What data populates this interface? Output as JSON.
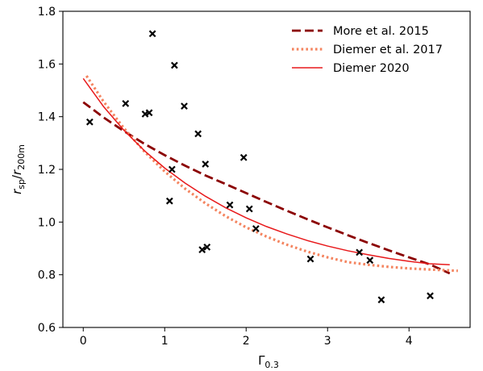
{
  "chart_data": {
    "type": "scatter",
    "xlabel": "Γ",
    "xlabel_sub": "0.3",
    "ylabel_main": "r",
    "ylabel_sub1": "sp",
    "ylabel_sep": "/",
    "ylabel_main2": "r",
    "ylabel_sub2": "200m",
    "xlim": [
      -0.25,
      4.75
    ],
    "ylim": [
      0.6,
      1.8
    ],
    "xticks": [
      0,
      1,
      2,
      3,
      4
    ],
    "yticks": [
      0.6,
      0.8,
      1.0,
      1.2,
      1.4,
      1.6,
      1.8
    ],
    "xtick_labels": [
      "0",
      "1",
      "2",
      "3",
      "4"
    ],
    "ytick_labels": [
      "0.6",
      "0.8",
      "1.0",
      "1.2",
      "1.4",
      "1.6",
      "1.8"
    ],
    "grid": false,
    "legend_position": "top-right",
    "points": {
      "x": [
        0.08,
        0.52,
        0.76,
        0.81,
        0.85,
        1.06,
        1.12,
        1.24,
        1.41,
        1.46,
        1.5,
        1.52,
        1.09,
        1.8,
        1.97,
        2.04,
        2.12,
        2.79,
        3.39,
        3.52,
        3.66,
        4.26
      ],
      "y": [
        1.38,
        1.45,
        1.41,
        1.415,
        1.715,
        1.08,
        1.595,
        1.44,
        1.335,
        0.895,
        1.22,
        0.905,
        1.2,
        1.065,
        1.245,
        1.05,
        0.975,
        0.86,
        0.885,
        0.855,
        0.705,
        0.72
      ],
      "marker": "x",
      "color": "#000000"
    },
    "series": [
      {
        "name": "More et al. 2015",
        "style": "dashed",
        "color": "#8b0000",
        "x": [
          0.0,
          0.25,
          0.5,
          0.75,
          1.0,
          1.25,
          1.5,
          1.75,
          2.0,
          2.25,
          2.5,
          2.75,
          3.0,
          3.25,
          3.5,
          3.75,
          4.0,
          4.25,
          4.5
        ],
        "y": [
          1.455,
          1.397,
          1.345,
          1.297,
          1.254,
          1.214,
          1.177,
          1.144,
          1.11,
          1.076,
          1.043,
          1.011,
          0.98,
          0.95,
          0.921,
          0.893,
          0.866,
          0.84,
          0.805
        ]
      },
      {
        "name": "Diemer et al. 2017",
        "style": "dotted",
        "color": "#f4845f",
        "x": [
          0.04,
          0.25,
          0.5,
          0.75,
          1.0,
          1.25,
          1.5,
          1.75,
          2.0,
          2.25,
          2.5,
          2.75,
          3.0,
          3.25,
          3.5,
          3.75,
          4.0,
          4.25,
          4.6
        ],
        "y": [
          1.555,
          1.457,
          1.356,
          1.268,
          1.192,
          1.127,
          1.071,
          1.022,
          0.98,
          0.945,
          0.914,
          0.888,
          0.866,
          0.848,
          0.838,
          0.83,
          0.824,
          0.82,
          0.815
        ]
      },
      {
        "name": "Diemer 2020",
        "style": "solid",
        "color": "#e8191b",
        "x": [
          0.0,
          0.25,
          0.5,
          0.75,
          1.0,
          1.25,
          1.5,
          1.75,
          2.0,
          2.25,
          2.5,
          2.75,
          3.0,
          3.25,
          3.5,
          3.75,
          4.0,
          4.25,
          4.5
        ],
        "y": [
          1.545,
          1.438,
          1.348,
          1.271,
          1.205,
          1.148,
          1.098,
          1.054,
          1.016,
          0.983,
          0.955,
          0.93,
          0.909,
          0.891,
          0.876,
          0.862,
          0.851,
          0.842,
          0.838
        ]
      }
    ]
  }
}
